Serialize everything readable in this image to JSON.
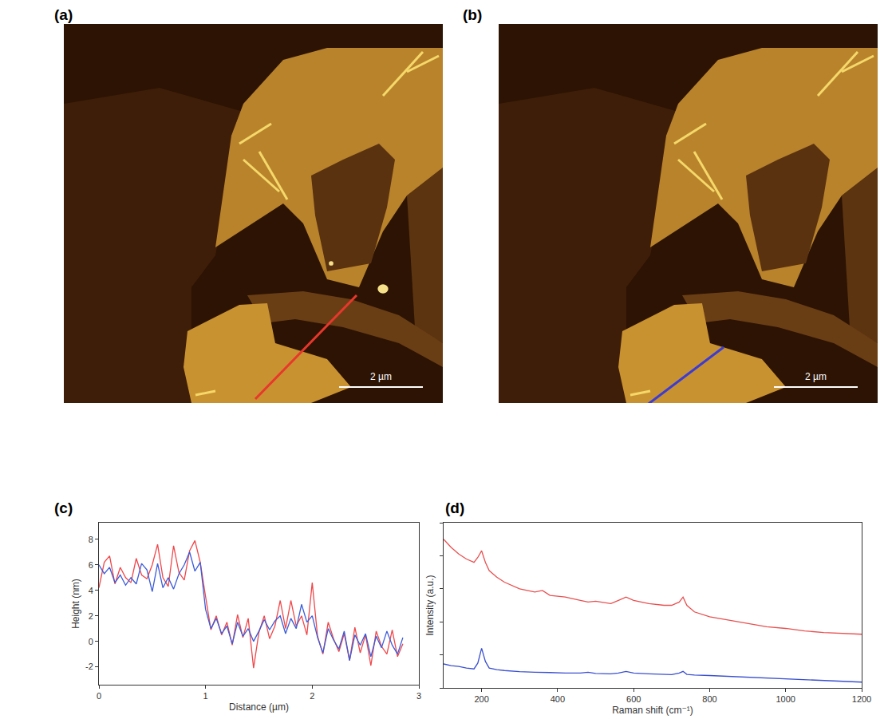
{
  "chart_data": [
    {
      "type": "image",
      "panel": "(a)",
      "scale_bar": "2 µm",
      "color": "#e8372c"
    },
    {
      "type": "image",
      "panel": "(b)",
      "scale_bar": "2 µm",
      "color": "#3b3bd6"
    },
    {
      "type": "line",
      "panel": "(c)",
      "x_label": "Distance (µm)",
      "y_label": "Height (nm)",
      "x": [
        0,
        0.05,
        0.1,
        0.15,
        0.2,
        0.25,
        0.3,
        0.35,
        0.4,
        0.45,
        0.5,
        0.55,
        0.6,
        0.65,
        0.7,
        0.75,
        0.8,
        0.85,
        0.9,
        0.95,
        1.0,
        1.05,
        1.1,
        1.15,
        1.2,
        1.25,
        1.3,
        1.35,
        1.4,
        1.45,
        1.5,
        1.55,
        1.6,
        1.65,
        1.7,
        1.75,
        1.8,
        1.85,
        1.9,
        1.95,
        2.0,
        2.05,
        2.1,
        2.15,
        2.2,
        2.25,
        2.3,
        2.35,
        2.4,
        2.45,
        2.5,
        2.55,
        2.6,
        2.65,
        2.7,
        2.75,
        2.8,
        2.85
      ],
      "series": [
        {
          "color": "#f0474a",
          "values": [
            4.2,
            6.2,
            6.7,
            4.5,
            5.8,
            5.0,
            4.6,
            6.5,
            5.2,
            4.9,
            6.0,
            7.6,
            5.0,
            4.3,
            7.5,
            5.4,
            4.8,
            7.1,
            7.9,
            6.2,
            3.5,
            0.9,
            2.0,
            0.5,
            1.5,
            -0.3,
            2.1,
            0.3,
            1.8,
            -2.1,
            0.7,
            2.0,
            0.2,
            1.2,
            3.2,
            1.0,
            3.2,
            1.2,
            2.0,
            0.5,
            4.6,
            0.4,
            -1.0,
            1.5,
            0.2,
            -0.8,
            0.6,
            -1.5,
            1.1,
            -0.9,
            0.5,
            -1.9,
            0.8,
            -0.4,
            -1.0,
            0.9,
            -1.2,
            -0.2
          ]
        },
        {
          "color": "#3a5bd9",
          "values": [
            6.0,
            5.3,
            5.8,
            4.6,
            5.2,
            4.4,
            5.0,
            4.5,
            6.1,
            5.6,
            3.9,
            6.1,
            4.2,
            5.0,
            4.1,
            5.3,
            6.0,
            7.0,
            5.5,
            6.2,
            2.5,
            1.0,
            1.8,
            0.6,
            1.2,
            -0.2,
            1.5,
            0.4,
            1.0,
            0.0,
            0.8,
            1.7,
            0.9,
            1.6,
            2.0,
            0.6,
            1.8,
            1.0,
            2.9,
            1.5,
            2.0,
            0.3,
            -0.9,
            1.0,
            0.1,
            -0.6,
            0.8,
            -1.5,
            0.5,
            -0.3,
            0.6,
            -1.2,
            0.4,
            -0.5,
            0.8,
            -0.3,
            -1.0,
            0.3
          ]
        }
      ],
      "xlim": [
        0,
        3
      ],
      "xticks": [
        0,
        1,
        2,
        3
      ],
      "ylim": [
        -3.4,
        9.3
      ],
      "yticks": [
        -2,
        0,
        2,
        4,
        6,
        8
      ],
      "grid": false
    },
    {
      "type": "line",
      "panel": "(d)",
      "x_label": "Raman shift (cm⁻¹)",
      "y_label": "Intensity (a.u.)",
      "x": [
        100,
        120,
        140,
        160,
        180,
        190,
        200,
        210,
        220,
        240,
        260,
        280,
        300,
        340,
        360,
        380,
        420,
        460,
        480,
        500,
        540,
        560,
        580,
        600,
        640,
        680,
        700,
        720,
        730,
        740,
        760,
        800,
        850,
        900,
        950,
        1000,
        1050,
        1100,
        1150,
        1200
      ],
      "series": [
        {
          "color": "#e85050",
          "values": [
            9.0,
            8.5,
            8.1,
            7.8,
            7.6,
            7.9,
            8.3,
            7.6,
            7.1,
            6.7,
            6.4,
            6.2,
            6.0,
            5.8,
            5.9,
            5.6,
            5.5,
            5.3,
            5.2,
            5.25,
            5.1,
            5.3,
            5.5,
            5.3,
            5.1,
            5.0,
            5.0,
            5.2,
            5.5,
            5.0,
            4.6,
            4.3,
            4.1,
            3.9,
            3.7,
            3.6,
            3.45,
            3.35,
            3.3,
            3.25
          ]
        },
        {
          "color": "#3a4fd0",
          "values": [
            1.45,
            1.35,
            1.3,
            1.2,
            1.15,
            1.5,
            2.4,
            1.6,
            1.2,
            1.1,
            1.05,
            1.0,
            0.98,
            0.95,
            0.95,
            0.93,
            0.9,
            0.9,
            0.95,
            0.88,
            0.85,
            0.9,
            1.0,
            0.9,
            0.85,
            0.82,
            0.8,
            0.9,
            1.0,
            0.82,
            0.78,
            0.75,
            0.7,
            0.65,
            0.6,
            0.55,
            0.5,
            0.45,
            0.4,
            0.35
          ]
        }
      ],
      "xlim": [
        100,
        1200
      ],
      "xticks": [
        200,
        400,
        600,
        800,
        1000,
        1200
      ],
      "ylim": [
        0,
        10
      ],
      "yticks": [
        0,
        2,
        4,
        6,
        8,
        10
      ],
      "tick_labels": "x",
      "grid": false
    }
  ]
}
